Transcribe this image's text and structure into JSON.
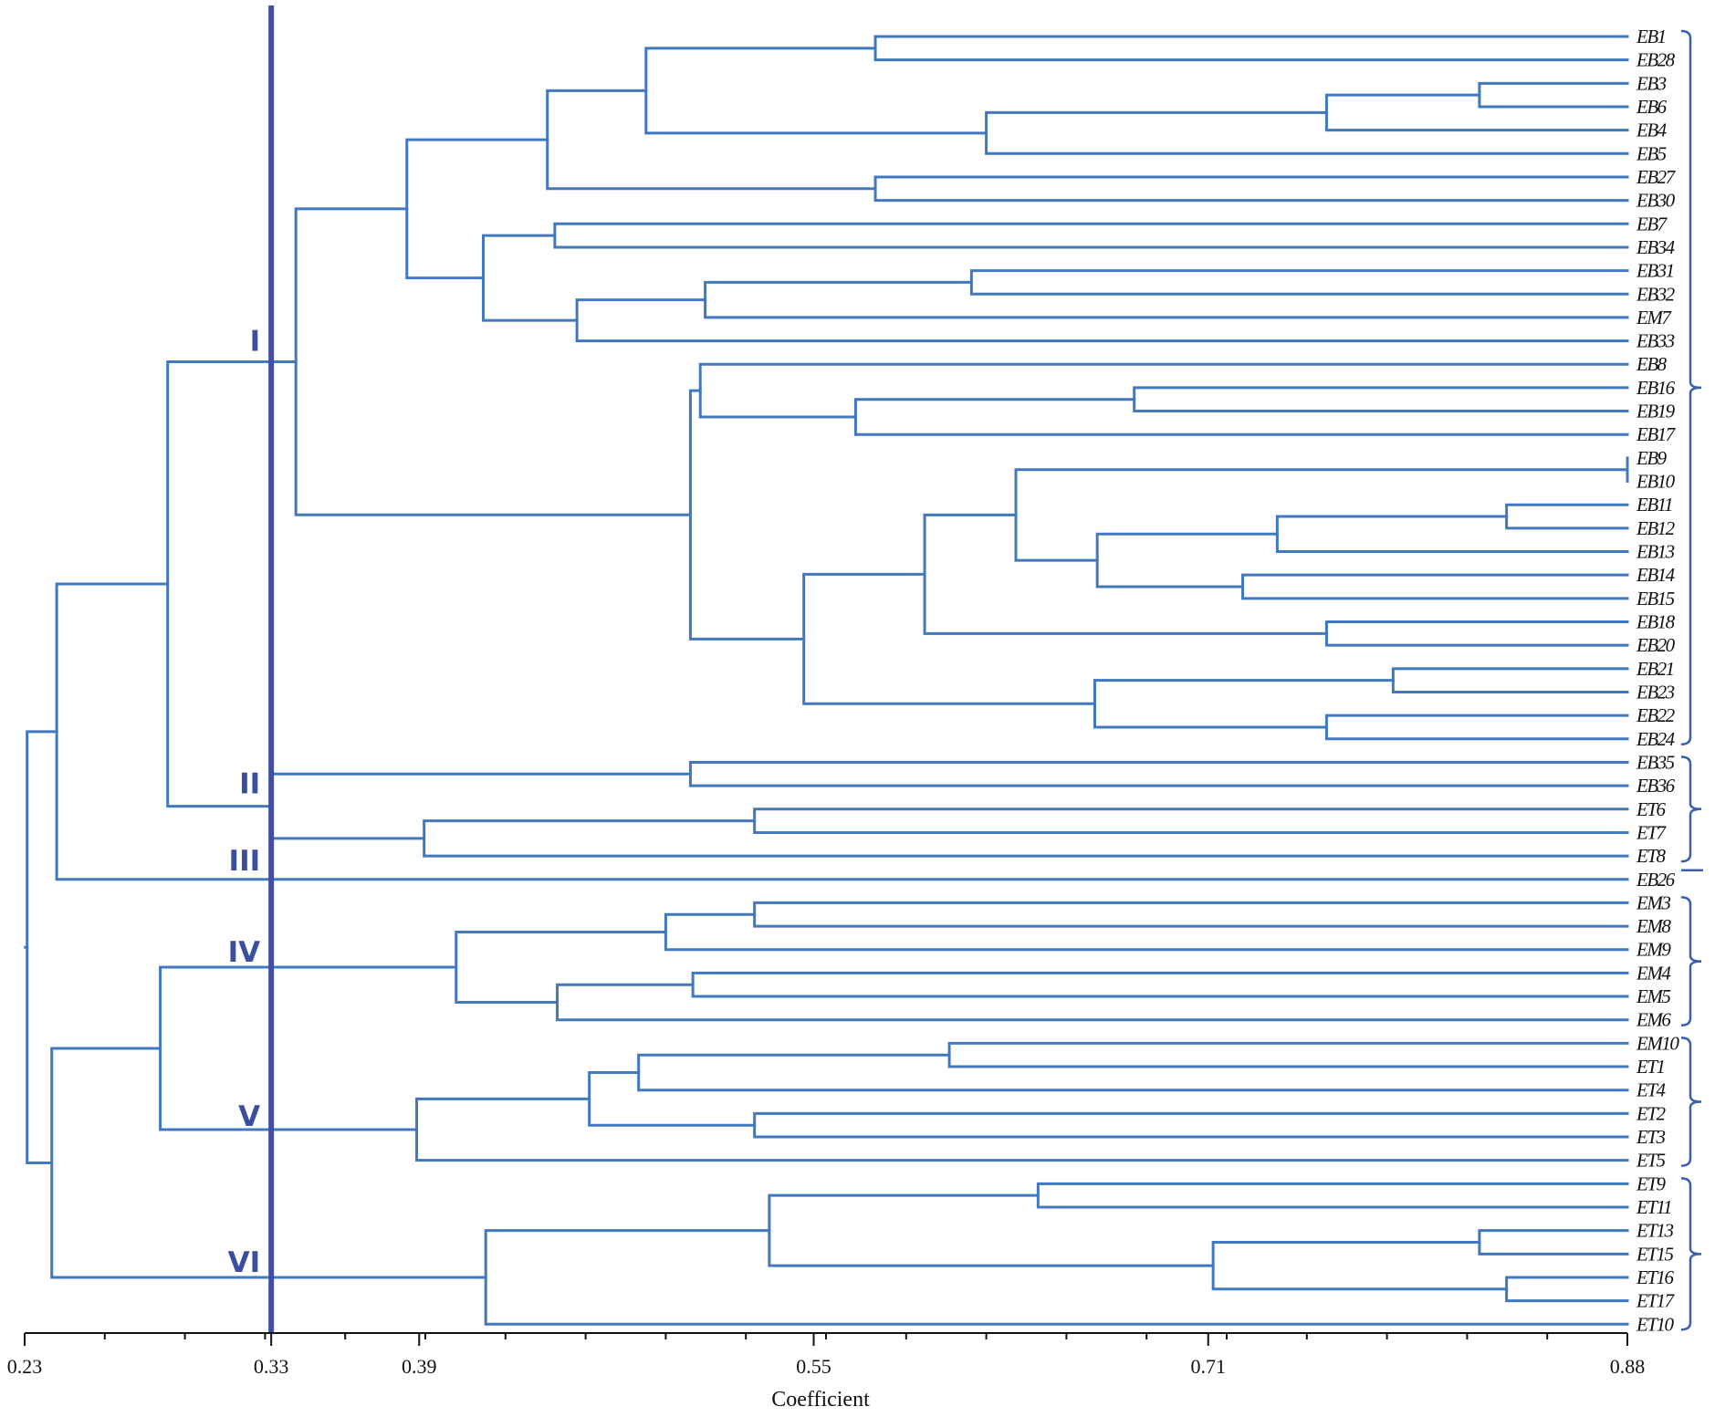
{
  "chart_data": {
    "type": "dendrogram",
    "xlabel": "Coefficient",
    "xlim": [
      0.23,
      0.88
    ],
    "ticks": [
      "0.23",
      "0.33",
      "0.39",
      "0.55",
      "0.71",
      "0.88"
    ],
    "cut_value": 0.33,
    "leaves": [
      "EB1",
      "EB28",
      "EB3",
      "EB6",
      "EB4",
      "EB5",
      "EB27",
      "EB30",
      "EB7",
      "EB34",
      "EB31",
      "EB32",
      "EM7",
      "EB33",
      "EB8",
      "EB16",
      "EB19",
      "EB17",
      "EB9",
      "EB10",
      "EB11",
      "EB12",
      "EB13",
      "EB14",
      "EB15",
      "EB18",
      "EB20",
      "EB21",
      "EB23",
      "EB22",
      "EB24",
      "EB35",
      "EB36",
      "ET6",
      "ET7",
      "ET8",
      "EB26",
      "EM3",
      "EM8",
      "EM9",
      "EM4",
      "EM5",
      "EM6",
      "EM10",
      "ET1",
      "ET4",
      "ET2",
      "ET3",
      "ET5",
      "ET9",
      "ET11",
      "ET13",
      "ET15",
      "ET16",
      "ET17",
      "ET10"
    ],
    "merges": [
      {
        "id": "n1",
        "children": [
          "EB1",
          "EB28"
        ],
        "height": 0.575
      },
      {
        "id": "n2",
        "children": [
          "EB3",
          "EB6"
        ],
        "height": 0.82
      },
      {
        "id": "n3",
        "children": [
          "n2",
          "EB4"
        ],
        "height": 0.758
      },
      {
        "id": "n4",
        "children": [
          "n3",
          "EB5"
        ],
        "height": 0.62
      },
      {
        "id": "n5",
        "children": [
          "n1",
          "n4"
        ],
        "height": 0.482
      },
      {
        "id": "n6",
        "children": [
          "EB27",
          "EB30"
        ],
        "height": 0.575
      },
      {
        "id": "n7",
        "children": [
          "n5",
          "n6"
        ],
        "height": 0.442
      },
      {
        "id": "n8",
        "children": [
          "EB7",
          "EB34"
        ],
        "height": 0.445
      },
      {
        "id": "n9",
        "children": [
          "EB31",
          "EB32"
        ],
        "height": 0.614
      },
      {
        "id": "n10",
        "children": [
          "n9",
          "EM7"
        ],
        "height": 0.506
      },
      {
        "id": "n11",
        "children": [
          "n10",
          "EB33"
        ],
        "height": 0.454
      },
      {
        "id": "n12",
        "children": [
          "n8",
          "n11"
        ],
        "height": 0.416
      },
      {
        "id": "n13",
        "children": [
          "n7",
          "n12"
        ],
        "height": 0.385
      },
      {
        "id": "n14",
        "children": [
          "EB16",
          "EB19"
        ],
        "height": 0.68
      },
      {
        "id": "n15",
        "children": [
          "n14",
          "EB17"
        ],
        "height": 0.567
      },
      {
        "id": "n16",
        "children": [
          "EB8",
          "n15"
        ],
        "height": 0.504
      },
      {
        "id": "n17",
        "children": [
          "EB9",
          "EB10"
        ],
        "height": 0.88
      },
      {
        "id": "n18",
        "children": [
          "EB11",
          "EB12"
        ],
        "height": 0.831
      },
      {
        "id": "n19",
        "children": [
          "n18",
          "EB13"
        ],
        "height": 0.738
      },
      {
        "id": "n20",
        "children": [
          "EB14",
          "EB15"
        ],
        "height": 0.724
      },
      {
        "id": "n21",
        "children": [
          "n19",
          "n20"
        ],
        "height": 0.665
      },
      {
        "id": "n22",
        "children": [
          "n17",
          "n21"
        ],
        "height": 0.632
      },
      {
        "id": "n23",
        "children": [
          "EB18",
          "EB20"
        ],
        "height": 0.758
      },
      {
        "id": "n24",
        "children": [
          "n22",
          "n23"
        ],
        "height": 0.595
      },
      {
        "id": "n25",
        "children": [
          "EB21",
          "EB23"
        ],
        "height": 0.785
      },
      {
        "id": "n26",
        "children": [
          "EB22",
          "EB24"
        ],
        "height": 0.758
      },
      {
        "id": "n27",
        "children": [
          "n25",
          "n26"
        ],
        "height": 0.664
      },
      {
        "id": "n28",
        "children": [
          "n24",
          "n27"
        ],
        "height": 0.546
      },
      {
        "id": "n29",
        "children": [
          "n16",
          "n28"
        ],
        "height": 0.5
      },
      {
        "id": "n30",
        "children": [
          "n13",
          "n29"
        ],
        "height": 0.34
      },
      {
        "id": "n31",
        "children": [
          "EB35",
          "EB36"
        ],
        "height": 0.5
      },
      {
        "id": "n32",
        "children": [
          "ET6",
          "ET7"
        ],
        "height": 0.526
      },
      {
        "id": "n33",
        "children": [
          "n32",
          "ET8"
        ],
        "height": 0.392
      },
      {
        "id": "n34",
        "children": [
          "n31",
          "n33"
        ],
        "height": 0.33
      },
      {
        "id": "n35",
        "children": [
          "n30",
          "n34"
        ],
        "height": 0.288
      },
      {
        "id": "n36",
        "children": [
          "n35",
          "EB26"
        ],
        "height": 0.243
      },
      {
        "id": "n37",
        "children": [
          "EM3",
          "EM8"
        ],
        "height": 0.526
      },
      {
        "id": "n38",
        "children": [
          "n37",
          "EM9"
        ],
        "height": 0.49
      },
      {
        "id": "n39",
        "children": [
          "EM4",
          "EM5"
        ],
        "height": 0.501
      },
      {
        "id": "n40",
        "children": [
          "n39",
          "EM6"
        ],
        "height": 0.446
      },
      {
        "id": "n41",
        "children": [
          "n38",
          "n40"
        ],
        "height": 0.405
      },
      {
        "id": "n42",
        "children": [
          "EM10",
          "ET1"
        ],
        "height": 0.605
      },
      {
        "id": "n43",
        "children": [
          "n42",
          "ET4"
        ],
        "height": 0.479
      },
      {
        "id": "n44",
        "children": [
          "ET2",
          "ET3"
        ],
        "height": 0.526
      },
      {
        "id": "n45",
        "children": [
          "n43",
          "n44"
        ],
        "height": 0.459
      },
      {
        "id": "n46",
        "children": [
          "n45",
          "ET5"
        ],
        "height": 0.389
      },
      {
        "id": "n47",
        "children": [
          "n41",
          "n46"
        ],
        "height": 0.285
      },
      {
        "id": "n48",
        "children": [
          "ET9",
          "ET11"
        ],
        "height": 0.641
      },
      {
        "id": "n49",
        "children": [
          "ET13",
          "ET15"
        ],
        "height": 0.82
      },
      {
        "id": "n50",
        "children": [
          "ET16",
          "ET17"
        ],
        "height": 0.831
      },
      {
        "id": "n51",
        "children": [
          "n49",
          "n50"
        ],
        "height": 0.712
      },
      {
        "id": "n52",
        "children": [
          "n48",
          "n51"
        ],
        "height": 0.532
      },
      {
        "id": "n53",
        "children": [
          "n52",
          "ET10"
        ],
        "height": 0.417
      },
      {
        "id": "n54",
        "children": [
          "n47",
          "n53"
        ],
        "height": 0.241
      },
      {
        "id": "n55",
        "children": [
          "n36",
          "n54"
        ],
        "height": 0.231
      }
    ],
    "clusters": [
      {
        "label": "I",
        "from": "EB1",
        "to": "EB24"
      },
      {
        "label": "II",
        "from": "EB35",
        "to": "ET8"
      },
      {
        "label": "III",
        "from": "EB26",
        "to": "EB26"
      },
      {
        "label": "IV",
        "from": "EM3",
        "to": "EM6"
      },
      {
        "label": "V",
        "from": "EM10",
        "to": "ET5"
      },
      {
        "label": "VI",
        "from": "ET9",
        "to": "ET10"
      }
    ]
  }
}
